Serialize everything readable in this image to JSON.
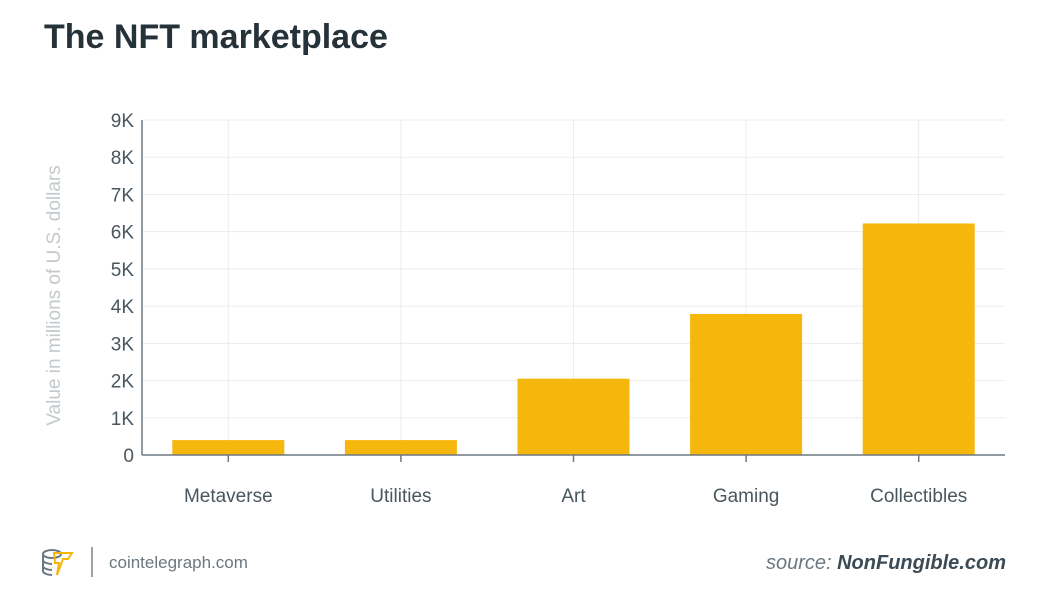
{
  "chart_data": {
    "type": "bar",
    "title": "The NFT marketplace",
    "categories": [
      "Metaverse",
      "Utilities",
      "Art",
      "Gaming",
      "Collectibles"
    ],
    "values": [
      400,
      400,
      2050,
      3790,
      6220
    ],
    "xlabel": "",
    "ylabel": "Value in millions of U.S. dollars",
    "ylim": [
      0,
      9000
    ],
    "yticks": [
      0,
      1000,
      2000,
      3000,
      4000,
      5000,
      6000,
      7000,
      8000,
      9000
    ],
    "ytick_labels": [
      "0",
      "1K",
      "2K",
      "3K",
      "4K",
      "5K",
      "6K",
      "7K",
      "8K",
      "9K"
    ],
    "grid": true,
    "bar_color": "#f5b70c"
  },
  "footer": {
    "site": "cointelegraph.com",
    "source_prefix": "source: ",
    "source_name": "NonFungible.com"
  }
}
